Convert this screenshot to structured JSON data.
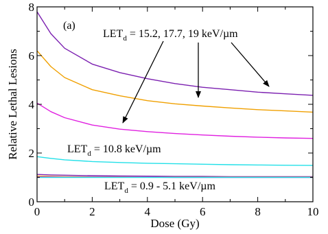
{
  "chart_data": {
    "type": "line",
    "panel_label": "(a)",
    "xlabel": "Dose (Gy)",
    "ylabel": "Relative Lethal Lesions",
    "xlim": [
      0,
      10
    ],
    "ylim": [
      0,
      8
    ],
    "x_ticks": [
      0,
      2,
      4,
      6,
      8,
      10
    ],
    "y_ticks": [
      0,
      2,
      4,
      6,
      8
    ],
    "grid": false,
    "x": [
      0,
      0.5,
      1,
      2,
      3,
      4,
      5,
      6,
      7,
      8,
      9,
      10
    ],
    "series": [
      {
        "color": "#7b1fb0",
        "values": [
          7.8,
          6.9,
          6.3,
          5.65,
          5.3,
          5.05,
          4.85,
          4.7,
          4.6,
          4.5,
          4.43,
          4.37
        ]
      },
      {
        "color": "#f0a000",
        "values": [
          6.2,
          5.55,
          5.1,
          4.6,
          4.35,
          4.15,
          4.02,
          3.93,
          3.85,
          3.78,
          3.73,
          3.68
        ]
      },
      {
        "color": "#e020e0",
        "values": [
          4.05,
          3.7,
          3.45,
          3.15,
          2.98,
          2.88,
          2.8,
          2.74,
          2.69,
          2.65,
          2.62,
          2.6
        ]
      },
      {
        "color": "#22e0e8",
        "values": [
          1.85,
          1.78,
          1.72,
          1.65,
          1.61,
          1.58,
          1.56,
          1.54,
          1.52,
          1.51,
          1.5,
          1.49
        ]
      },
      {
        "color": "#7b1fb0",
        "values": [
          1.12,
          1.1,
          1.09,
          1.07,
          1.06,
          1.05,
          1.04,
          1.04,
          1.03,
          1.03,
          1.03,
          1.03
        ]
      },
      {
        "color": "#f0a000",
        "values": [
          1.05,
          1.04,
          1.03,
          1.02,
          1.02,
          1.01,
          1.01,
          1.01,
          1.01,
          1.01,
          1.01,
          1.01
        ]
      },
      {
        "color": "#e020e0",
        "values": [
          1.02,
          1.02,
          1.01,
          1.01,
          1.01,
          1.01,
          1.0,
          1.0,
          1.0,
          1.0,
          1.0,
          1.0
        ]
      },
      {
        "color": "#22e0e8",
        "values": [
          1.0,
          1.0,
          1.0,
          1.0,
          1.0,
          1.0,
          1.0,
          1.0,
          1.0,
          1.0,
          1.0,
          1.0
        ]
      }
    ],
    "annotations": [
      {
        "text_main": "LET",
        "text_sub": "d",
        "text_rest": " = 15.2, 17.7,  19 keV/µm"
      },
      {
        "text_main": "LET",
        "text_sub": "d",
        "text_rest": " = 10.8 keV/µm"
      },
      {
        "text_main": "LET",
        "text_sub": "d",
        "text_rest": " = 0.9 - 5.1 keV/µm"
      }
    ]
  }
}
